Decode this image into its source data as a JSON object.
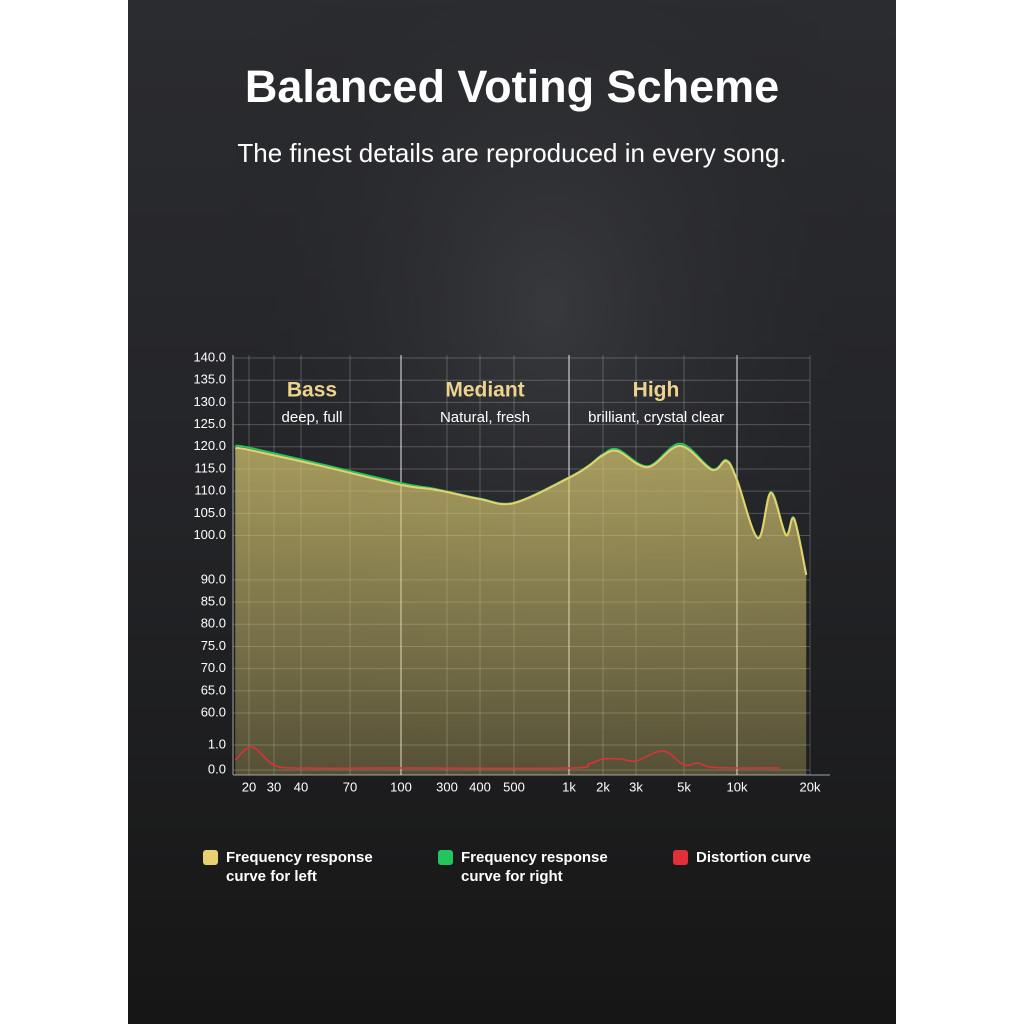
{
  "chart_data": {
    "type": "line",
    "title": "Balanced Voting Scheme",
    "subtitle": "The finest details are reproduced in every song.",
    "xscale": "log",
    "xlim": [
      16,
      20000
    ],
    "xticks": [
      20,
      30,
      40,
      70,
      100,
      300,
      400,
      500,
      {
        "value": 1000,
        "label": "1k"
      },
      {
        "value": 2000,
        "label": "2k"
      },
      {
        "value": 3000,
        "label": "3k"
      },
      {
        "value": 5000,
        "label": "5k"
      },
      {
        "value": 10000,
        "label": "10k"
      },
      {
        "value": 20000,
        "label": "20k"
      }
    ],
    "ylim": [
      60,
      140
    ],
    "yticks": [
      {
        "value": 140,
        "label": "140.0"
      },
      {
        "value": 135,
        "label": "135.0"
      },
      {
        "value": 130,
        "label": "130.0"
      },
      {
        "value": 125,
        "label": "125.0"
      },
      {
        "value": 120,
        "label": "120.0"
      },
      {
        "value": 115,
        "label": "115.0"
      },
      {
        "value": 110,
        "label": "110.0"
      },
      {
        "value": 105,
        "label": "105.0"
      },
      {
        "value": 100,
        "label": "100.0"
      },
      {
        "value": 90,
        "label": "90.0"
      },
      {
        "value": 85,
        "label": "85.0"
      },
      {
        "value": 80,
        "label": "80.0"
      },
      {
        "value": 75,
        "label": "75.0"
      },
      {
        "value": 70,
        "label": "70.0"
      },
      {
        "value": 65,
        "label": "65.0"
      },
      {
        "value": 60,
        "label": "60.0"
      }
    ],
    "y2lim": [
      0,
      1
    ],
    "y2ticks": [
      {
        "value": 1,
        "label": "1.0"
      },
      {
        "value": 0,
        "label": "0.0"
      }
    ],
    "grid": true,
    "bands": [
      {
        "title": "Bass",
        "subtitle": "deep, full"
      },
      {
        "title": "Mediant",
        "subtitle": "Natural, fresh"
      },
      {
        "title": "High",
        "subtitle": "brilliant, crystal clear"
      }
    ],
    "series": [
      {
        "name": "Frequency response curve for left",
        "color": "#e8d070",
        "fill": true,
        "x": [
          16,
          20,
          50,
          100,
          200,
          300,
          400,
          500,
          1000,
          1500,
          2000,
          2400,
          3400,
          4800,
          7200,
          8700,
          10000,
          12200,
          13800,
          15900,
          17200,
          19300
        ],
        "values": [
          119.7,
          119.3,
          115.7,
          111.4,
          110.5,
          109.8,
          108.2,
          107.3,
          113.0,
          115.7,
          118.1,
          119.0,
          115.4,
          120.2,
          114.8,
          116.8,
          112.5,
          99.4,
          109.6,
          100.1,
          103.7,
          91.1
        ]
      },
      {
        "name": "Frequency response curve for right",
        "color": "#22c55e",
        "x": [
          16,
          20,
          50,
          100,
          200,
          300,
          400,
          500,
          1000,
          1500,
          2000,
          2400,
          3400,
          4800,
          7200,
          8700,
          10000,
          12200,
          13800,
          15900,
          17200,
          19300
        ],
        "values": [
          120.2,
          119.8,
          116.1,
          111.8,
          110.7,
          109.9,
          108.3,
          107.4,
          113.1,
          115.8,
          118.3,
          119.4,
          115.6,
          120.7,
          115.0,
          117.0,
          112.6,
          99.5,
          109.8,
          100.3,
          103.9,
          91.3
        ]
      },
      {
        "name": "Distortion curve",
        "color": "#e0303a",
        "axis": "y2",
        "x": [
          16,
          21,
          30,
          40,
          100,
          1000,
          1500,
          2000,
          2500,
          3000,
          4000,
          5000,
          6000,
          7000,
          10000,
          15000
        ],
        "values": [
          0.4,
          0.92,
          0.2,
          0.08,
          0.08,
          0.08,
          0.24,
          0.44,
          0.44,
          0.36,
          0.76,
          0.2,
          0.28,
          0.12,
          0.08,
          0.08
        ]
      }
    ]
  }
}
